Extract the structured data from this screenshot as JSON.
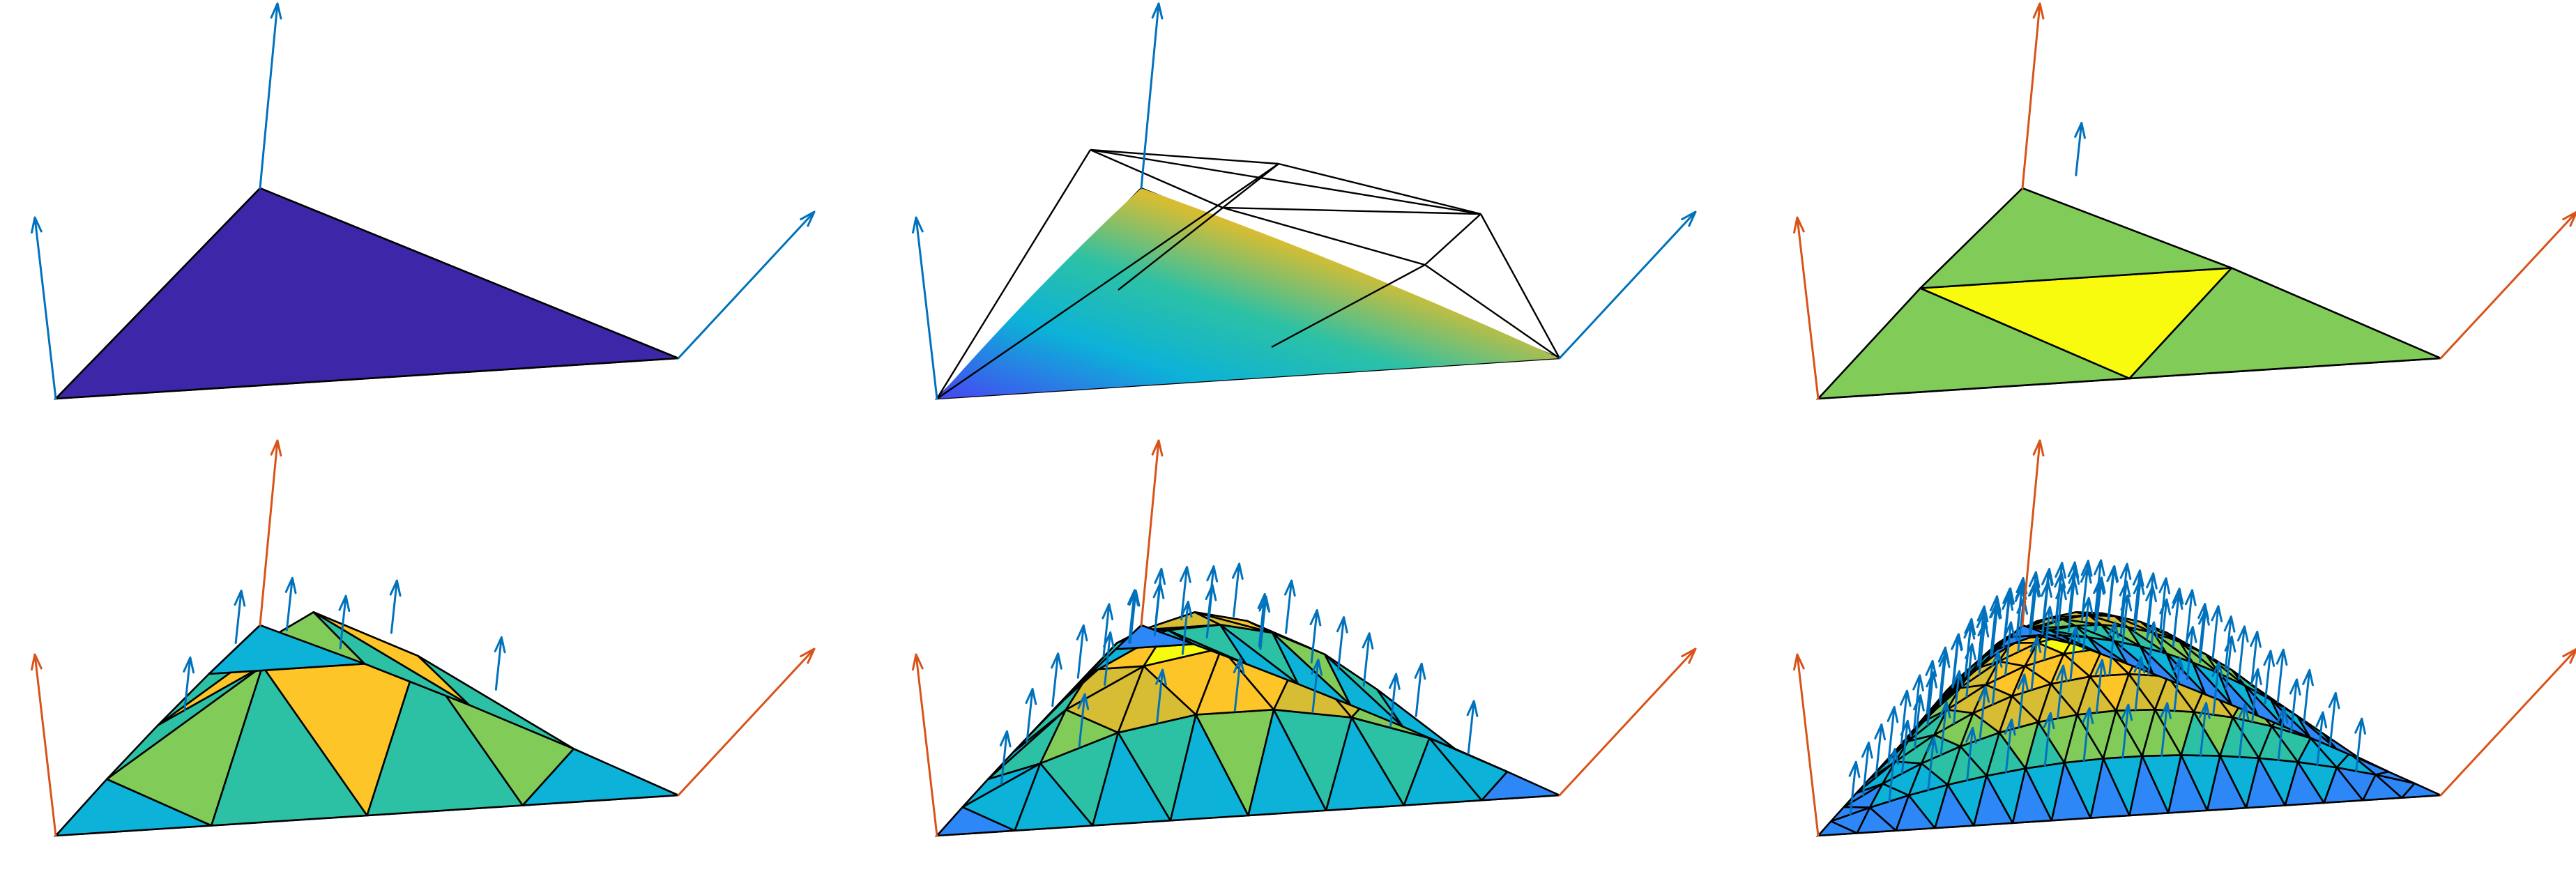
{
  "figure": {
    "rows": 2,
    "cols": 3,
    "colors": {
      "blue_vector": "#0072BD",
      "orange_vector": "#D95319",
      "edge": "#000000",
      "colormap": [
        "#3E26A8",
        "#4745F3",
        "#2E87F7",
        "#0CB2D8",
        "#2CC1A5",
        "#81CC59",
        "#D6BD33",
        "#FDC527",
        "#F9FB0E"
      ]
    },
    "panels": [
      {
        "id": "level-0",
        "subdivision_level": 0,
        "smooth_surface": false,
        "corner_vector_color": "blue"
      },
      {
        "id": "smooth-surface",
        "subdivision_level": 1,
        "smooth_surface": true,
        "corner_vector_color": "blue"
      },
      {
        "id": "level-1",
        "subdivision_level": 1,
        "smooth_surface": false,
        "corner_vector_color": "orange"
      },
      {
        "id": "level-2",
        "subdivision_level": 2,
        "smooth_surface": false,
        "corner_vector_color": "orange"
      },
      {
        "id": "level-3",
        "subdivision_level": 3,
        "smooth_surface": false,
        "corner_vector_color": "orange"
      },
      {
        "id": "level-4",
        "subdivision_level": 4,
        "smooth_surface": false,
        "corner_vector_color": "orange"
      }
    ]
  }
}
